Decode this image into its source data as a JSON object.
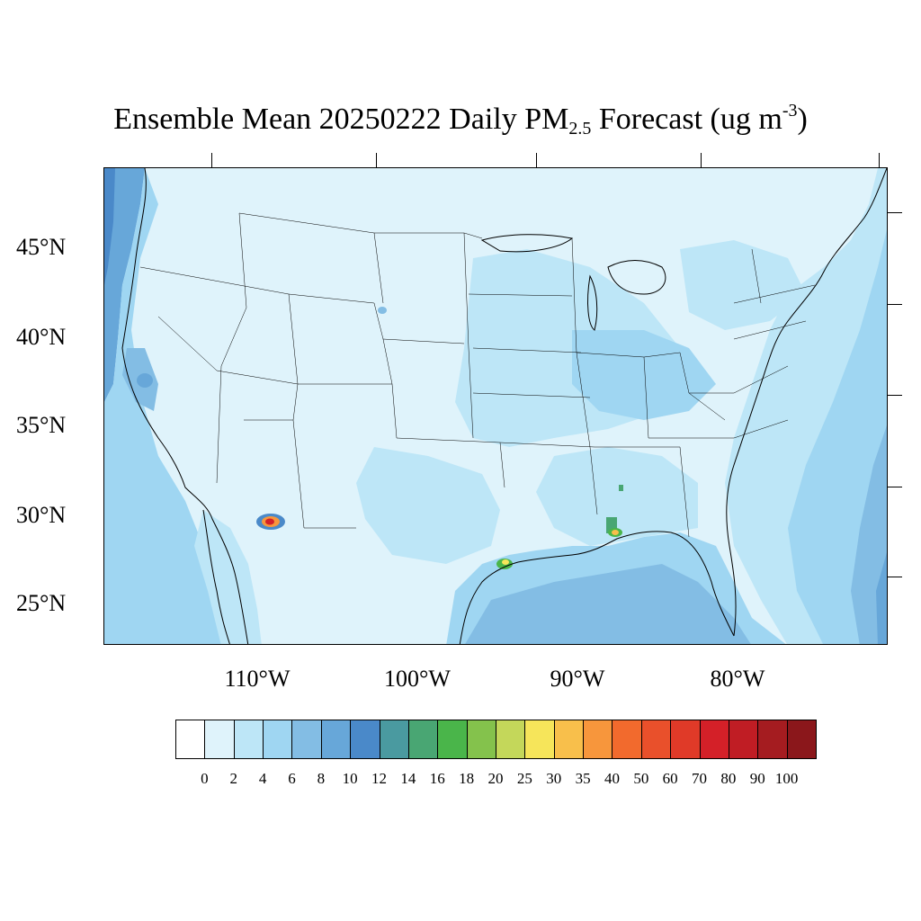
{
  "title": {
    "main": "Ensemble Mean 20250222 Daily PM",
    "sub": "2.5",
    "after_sub": " Forecast (ug m",
    "sup": "-3",
    "close": ")"
  },
  "map": {
    "projection": "lambert-conformal",
    "region": "Contiguous United States",
    "lat_labels": [
      "45°N",
      "40°N",
      "35°N",
      "30°N",
      "25°N"
    ],
    "lon_labels": [
      "110°W",
      "100°W",
      "90°W",
      "80°W"
    ],
    "background_color": "#dff3fb",
    "ocean_color": "#9fd6f2",
    "boundary_color": "#000000"
  },
  "colorbar": {
    "labels": [
      "0",
      "2",
      "4",
      "6",
      "8",
      "10",
      "12",
      "14",
      "16",
      "18",
      "20",
      "25",
      "30",
      "35",
      "40",
      "50",
      "60",
      "70",
      "80",
      "90",
      "100"
    ],
    "colors": [
      "#ffffff",
      "#dff3fb",
      "#bde6f7",
      "#9fd6f2",
      "#83bde4",
      "#67a7d9",
      "#4a89c9",
      "#4a9aa0",
      "#49a673",
      "#4ab54a",
      "#84c24c",
      "#c4d75a",
      "#f6e55a",
      "#f8bf4b",
      "#f7963c",
      "#f26a2d",
      "#e9502b",
      "#e03a28",
      "#d42028",
      "#c01d24",
      "#a51c20",
      "#8b171b"
    ]
  },
  "hotspots": [
    {
      "name": "Southern Arizona",
      "level": "70-80"
    },
    {
      "name": "Houston coast",
      "level": "25-30"
    },
    {
      "name": "Mobile coast",
      "level": "30-35"
    }
  ]
}
